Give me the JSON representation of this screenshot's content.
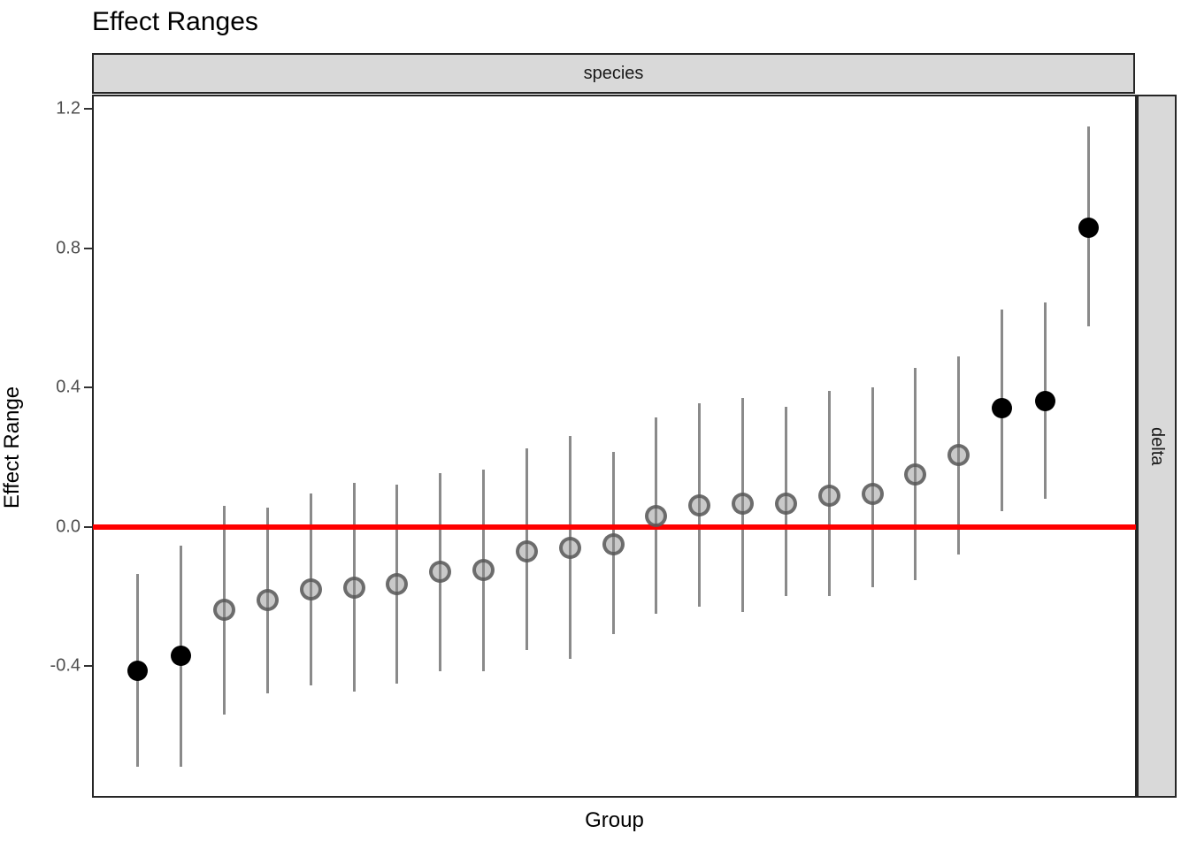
{
  "title": "Effect Ranges",
  "facets": {
    "col_label": "species",
    "row_label": "delta"
  },
  "axes": {
    "x_label": "Group",
    "y_label": "Effect Range",
    "y_tick_labels": [
      "1.2",
      "0.8",
      "0.4",
      "0.0",
      "-0.4"
    ]
  },
  "colors": {
    "reference_line": "#ff0000",
    "strip_bg": "#d9d9d9",
    "strip_border": "#262626",
    "panel_border": "#262626",
    "error_bar": "#8a8a8a",
    "point_black": "#000000",
    "point_gray_ring": "rgba(85,85,85,0.8)",
    "point_gray_fill": "rgba(135,135,135,0.45)",
    "tick_text": "#4d4d4d"
  },
  "chart_data": {
    "type": "scatter",
    "title": "Effect Ranges",
    "xlabel": "Group",
    "ylabel": "Effect Range",
    "facet_col": "species",
    "facet_row": "delta",
    "ylim": [
      -0.78,
      1.24
    ],
    "y_ticks": [
      1.2,
      0.8,
      0.4,
      0.0,
      -0.4
    ],
    "reference_line_y": 0.0,
    "grid": "off",
    "legend": "none",
    "n_groups": 23,
    "points": [
      {
        "group": 1,
        "estimate": -0.415,
        "lower": -0.69,
        "upper": -0.135,
        "significant": true
      },
      {
        "group": 2,
        "estimate": -0.37,
        "lower": -0.69,
        "upper": -0.055,
        "significant": true
      },
      {
        "group": 3,
        "estimate": -0.24,
        "lower": -0.54,
        "upper": 0.06,
        "significant": false
      },
      {
        "group": 4,
        "estimate": -0.21,
        "lower": -0.48,
        "upper": 0.055,
        "significant": false
      },
      {
        "group": 5,
        "estimate": -0.18,
        "lower": -0.455,
        "upper": 0.095,
        "significant": false
      },
      {
        "group": 6,
        "estimate": -0.175,
        "lower": -0.475,
        "upper": 0.125,
        "significant": false
      },
      {
        "group": 7,
        "estimate": -0.165,
        "lower": -0.45,
        "upper": 0.12,
        "significant": false
      },
      {
        "group": 8,
        "estimate": -0.13,
        "lower": -0.415,
        "upper": 0.155,
        "significant": false
      },
      {
        "group": 9,
        "estimate": -0.125,
        "lower": -0.415,
        "upper": 0.165,
        "significant": false
      },
      {
        "group": 10,
        "estimate": -0.07,
        "lower": -0.355,
        "upper": 0.225,
        "significant": false
      },
      {
        "group": 11,
        "estimate": -0.06,
        "lower": -0.38,
        "upper": 0.26,
        "significant": false
      },
      {
        "group": 12,
        "estimate": -0.05,
        "lower": -0.31,
        "upper": 0.215,
        "significant": false
      },
      {
        "group": 13,
        "estimate": 0.03,
        "lower": -0.25,
        "upper": 0.315,
        "significant": false
      },
      {
        "group": 14,
        "estimate": 0.06,
        "lower": -0.23,
        "upper": 0.355,
        "significant": false
      },
      {
        "group": 15,
        "estimate": 0.065,
        "lower": -0.245,
        "upper": 0.37,
        "significant": false
      },
      {
        "group": 16,
        "estimate": 0.065,
        "lower": -0.2,
        "upper": 0.345,
        "significant": false
      },
      {
        "group": 17,
        "estimate": 0.09,
        "lower": -0.2,
        "upper": 0.39,
        "significant": false
      },
      {
        "group": 18,
        "estimate": 0.095,
        "lower": -0.175,
        "upper": 0.4,
        "significant": false
      },
      {
        "group": 19,
        "estimate": 0.15,
        "lower": -0.155,
        "upper": 0.455,
        "significant": false
      },
      {
        "group": 20,
        "estimate": 0.205,
        "lower": -0.08,
        "upper": 0.49,
        "significant": false
      },
      {
        "group": 21,
        "estimate": 0.34,
        "lower": 0.045,
        "upper": 0.625,
        "significant": true
      },
      {
        "group": 22,
        "estimate": 0.36,
        "lower": 0.08,
        "upper": 0.645,
        "significant": true
      },
      {
        "group": 23,
        "estimate": 0.86,
        "lower": 0.575,
        "upper": 1.15,
        "significant": true
      }
    ]
  }
}
